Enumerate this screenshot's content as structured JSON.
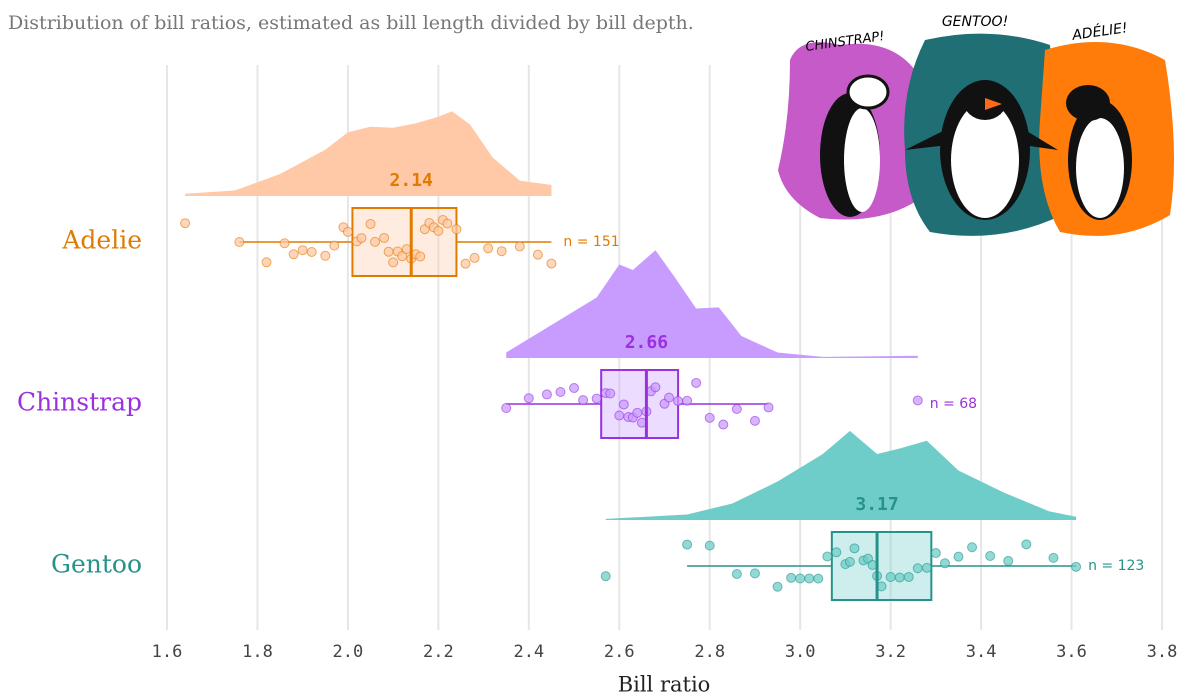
{
  "chart_data": {
    "type": "raincloud",
    "subtitle": "Distribution of bill ratios, estimated as bill length divided by bill depth.",
    "xlabel": "Bill ratio",
    "xlim": [
      1.6,
      3.8
    ],
    "xticks": [
      1.6,
      1.8,
      {
        "value": 2,
        "label": "2.0"
      },
      2.2,
      2.4,
      2.6,
      2.8,
      {
        "value": 3,
        "label": "3.0"
      },
      3.2,
      3.4,
      3.6,
      3.8
    ],
    "grid": true,
    "series": [
      {
        "name": "Adelie",
        "color": "#e07b00",
        "fill": "#ffc8a6",
        "density": {
          "x": [
            1.64,
            1.75,
            1.85,
            1.95,
            2.0,
            2.05,
            2.1,
            2.15,
            2.2,
            2.23,
            2.27,
            2.32,
            2.38,
            2.45
          ],
          "values": [
            0.02,
            0.05,
            0.2,
            0.42,
            0.58,
            0.63,
            0.62,
            0.66,
            0.72,
            0.77,
            0.65,
            0.35,
            0.14,
            0.1
          ]
        },
        "box": {
          "whisker_low": 1.76,
          "q1": 2.01,
          "median": 2.14,
          "q3": 2.24,
          "whisker_high": 2.45
        },
        "n_label": "n = 151",
        "outliers": [
          1.64
        ],
        "points": [
          1.76,
          1.82,
          1.86,
          1.88,
          1.9,
          1.92,
          1.95,
          1.97,
          1.99,
          2.0,
          2.02,
          2.03,
          2.05,
          2.06,
          2.08,
          2.09,
          2.1,
          2.11,
          2.12,
          2.13,
          2.14,
          2.15,
          2.16,
          2.17,
          2.18,
          2.19,
          2.2,
          2.21,
          2.22,
          2.24,
          2.26,
          2.28,
          2.31,
          2.34,
          2.38,
          2.42,
          2.45
        ]
      },
      {
        "name": "Chinstrap",
        "color": "#9b30e0",
        "fill": "#c89cff",
        "density": {
          "x": [
            2.35,
            2.45,
            2.55,
            2.6,
            2.63,
            2.68,
            2.72,
            2.77,
            2.82,
            2.87,
            2.95,
            3.05,
            3.26
          ],
          "values": [
            0.05,
            0.3,
            0.55,
            0.85,
            0.8,
            0.98,
            0.75,
            0.45,
            0.46,
            0.2,
            0.05,
            0.01,
            0.02
          ]
        },
        "box": {
          "whisker_low": 2.35,
          "q1": 2.56,
          "median": 2.66,
          "q3": 2.73,
          "whisker_high": 2.93
        },
        "n_label": "n = 68",
        "outliers": [
          3.26
        ],
        "points": [
          2.35,
          2.4,
          2.44,
          2.47,
          2.5,
          2.52,
          2.55,
          2.57,
          2.58,
          2.6,
          2.61,
          2.62,
          2.63,
          2.64,
          2.65,
          2.66,
          2.67,
          2.68,
          2.7,
          2.71,
          2.73,
          2.75,
          2.77,
          2.8,
          2.83,
          2.86,
          2.9,
          2.93
        ]
      },
      {
        "name": "Gentoo",
        "color": "#26928a",
        "fill": "#6fcdc9",
        "density": {
          "x": [
            2.57,
            2.75,
            2.85,
            2.95,
            3.05,
            3.11,
            3.17,
            3.22,
            3.28,
            3.35,
            3.45,
            3.55,
            3.61
          ],
          "values": [
            0.01,
            0.05,
            0.15,
            0.35,
            0.6,
            0.81,
            0.6,
            0.65,
            0.72,
            0.45,
            0.25,
            0.08,
            0.03
          ]
        },
        "box": {
          "whisker_low": 2.75,
          "q1": 3.07,
          "median": 3.17,
          "q3": 3.29,
          "whisker_high": 3.61
        },
        "n_label": "n = 123",
        "outliers": [
          2.57
        ],
        "points": [
          2.75,
          2.8,
          2.86,
          2.9,
          2.95,
          2.98,
          3.0,
          3.02,
          3.04,
          3.06,
          3.08,
          3.1,
          3.11,
          3.12,
          3.14,
          3.15,
          3.16,
          3.17,
          3.18,
          3.2,
          3.22,
          3.24,
          3.26,
          3.28,
          3.3,
          3.32,
          3.35,
          3.38,
          3.42,
          3.46,
          3.5,
          3.56,
          3.61
        ]
      }
    ]
  },
  "illustration": {
    "labels": [
      "CHINSTRAP!",
      "GENTOO!",
      "ADÉLIE!"
    ]
  }
}
